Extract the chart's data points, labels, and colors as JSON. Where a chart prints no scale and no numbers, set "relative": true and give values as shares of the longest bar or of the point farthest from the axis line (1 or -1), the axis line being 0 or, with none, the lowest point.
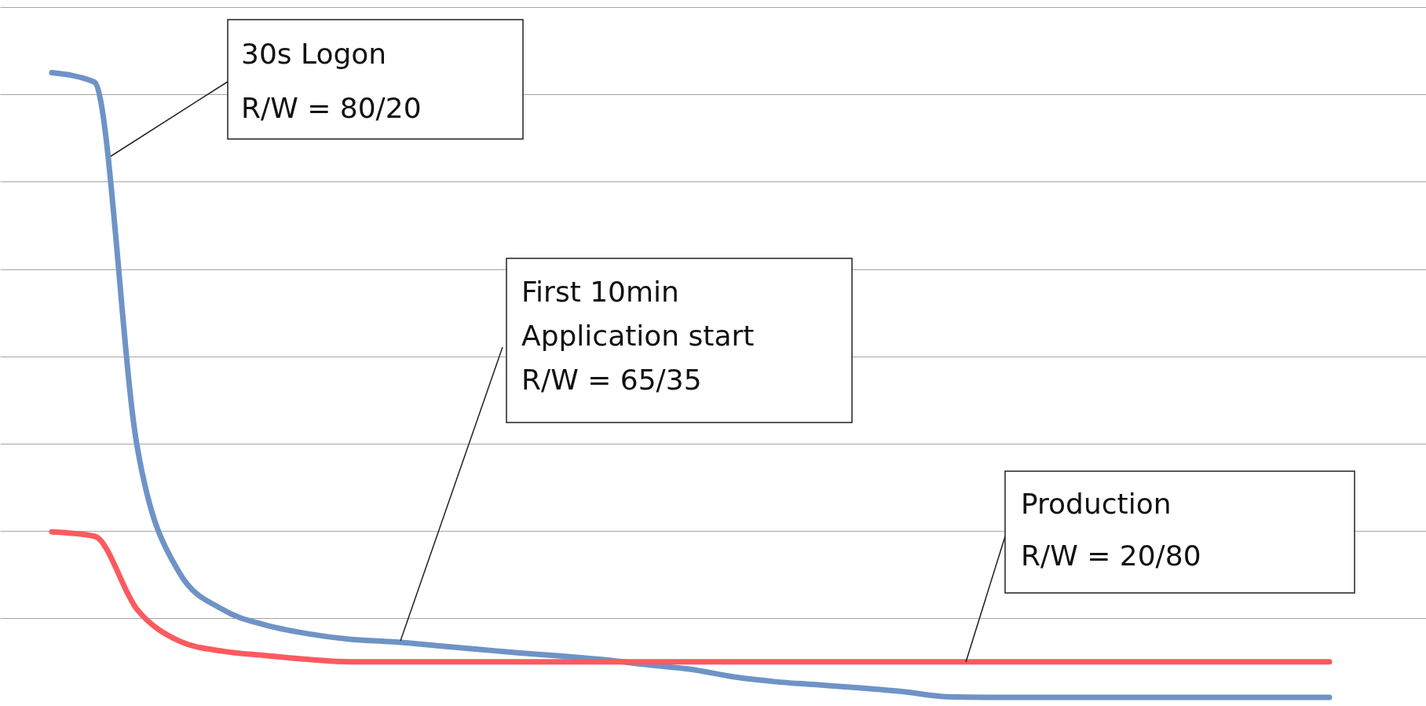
{
  "chart_data": {
    "type": "line",
    "relative": true,
    "grid": true,
    "categories": [
      null,
      null,
      null,
      null,
      null,
      null,
      null,
      null,
      null,
      null,
      null,
      null,
      null,
      null,
      null,
      null,
      null,
      null,
      null,
      null,
      null,
      null,
      null,
      null,
      null,
      null,
      null,
      null,
      null,
      null,
      null
    ],
    "series": [
      {
        "color": "#6f93c6",
        "values": [
          1,
          0.985,
          0.403,
          0.199,
          0.141,
          0.116,
          0.102,
          0.093,
          0.089,
          0.083,
          0.077,
          0.071,
          0.066,
          0.06,
          0.052,
          0.045,
          0.033,
          0.025,
          0.02,
          0.015,
          0.009,
          0.001,
          0,
          0,
          0,
          0,
          0,
          0,
          0,
          0,
          0
        ]
      },
      {
        "color": "#fc5a5f",
        "values": [
          0.265,
          0.258,
          0.141,
          0.09,
          0.074,
          0.067,
          0.061,
          0.057,
          0.057,
          0.057,
          0.057,
          0.057,
          0.057,
          0.057,
          0.057,
          0.057,
          0.057,
          0.057,
          0.057,
          0.057,
          0.057,
          0.057,
          0.057,
          0.057,
          0.057,
          0.057,
          0.057,
          0.057,
          0.057,
          0.057,
          0.057
        ]
      }
    ],
    "annotations": [
      "30s Logon\nR/W = 80/20",
      "First 10min\nApplication start\nR/W = 65/35",
      "Production\nR/W = 20/80"
    ]
  }
}
